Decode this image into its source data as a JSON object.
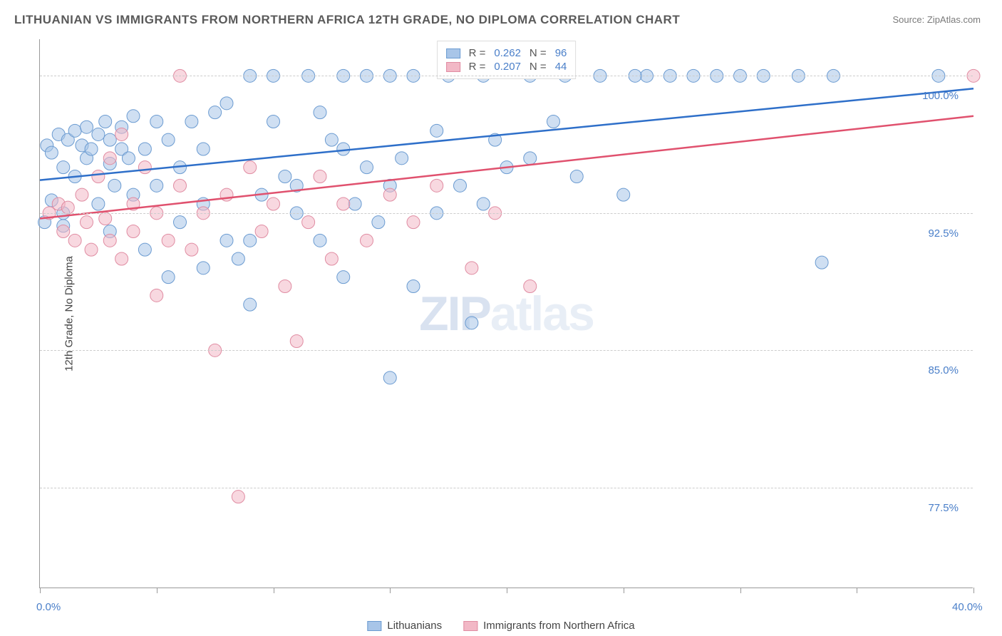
{
  "title": "LITHUANIAN VS IMMIGRANTS FROM NORTHERN AFRICA 12TH GRADE, NO DIPLOMA CORRELATION CHART",
  "source": "Source: ZipAtlas.com",
  "ylabel": "12th Grade, No Diploma",
  "watermark_a": "ZIP",
  "watermark_b": "atlas",
  "chart": {
    "type": "scatter",
    "xlim": [
      0,
      40
    ],
    "ylim": [
      72,
      102
    ],
    "x_ticks": [
      0,
      5,
      10,
      15,
      20,
      25,
      30,
      35,
      40
    ],
    "x_tick_labels": {
      "0": "0.0%",
      "40": "40.0%"
    },
    "y_ticks": [
      77.5,
      85.0,
      92.5,
      100.0
    ],
    "y_tick_labels": [
      "77.5%",
      "85.0%",
      "92.5%",
      "100.0%"
    ],
    "grid_color": "#cccccc",
    "background_color": "#ffffff",
    "series": [
      {
        "name": "Lithuanians",
        "color_fill": "#a8c5e8",
        "color_stroke": "#6b9bd1",
        "line_color": "#2e6fc9",
        "marker_r": 9,
        "fill_opacity": 0.55,
        "R_label": "R =",
        "R": "0.262",
        "N_label": "N =",
        "N": "96",
        "trend": {
          "x1": 0,
          "y1": 94.3,
          "x2": 40,
          "y2": 99.3
        },
        "points": [
          [
            0.3,
            96.2
          ],
          [
            0.5,
            95.8
          ],
          [
            0.5,
            93.2
          ],
          [
            0.8,
            96.8
          ],
          [
            1.0,
            95.0
          ],
          [
            1.0,
            91.8
          ],
          [
            1.2,
            96.5
          ],
          [
            1.5,
            97.0
          ],
          [
            1.5,
            94.5
          ],
          [
            1.8,
            96.2
          ],
          [
            2.0,
            97.2
          ],
          [
            2.0,
            95.5
          ],
          [
            2.2,
            96.0
          ],
          [
            2.5,
            96.8
          ],
          [
            2.5,
            93.0
          ],
          [
            2.8,
            97.5
          ],
          [
            3.0,
            95.2
          ],
          [
            3.0,
            96.5
          ],
          [
            3.2,
            94.0
          ],
          [
            3.5,
            96.0
          ],
          [
            3.5,
            97.2
          ],
          [
            3.8,
            95.5
          ],
          [
            4.0,
            97.8
          ],
          [
            4.0,
            93.5
          ],
          [
            4.5,
            96.0
          ],
          [
            4.5,
            90.5
          ],
          [
            5.0,
            97.5
          ],
          [
            5.0,
            94.0
          ],
          [
            5.5,
            96.5
          ],
          [
            6.0,
            95.0
          ],
          [
            6.0,
            92.0
          ],
          [
            6.5,
            97.5
          ],
          [
            7.0,
            89.5
          ],
          [
            7.0,
            96.0
          ],
          [
            7.5,
            98.0
          ],
          [
            8.0,
            98.5
          ],
          [
            8.0,
            91.0
          ],
          [
            8.5,
            90.0
          ],
          [
            9.0,
            100.0
          ],
          [
            9.0,
            87.5
          ],
          [
            9.5,
            93.5
          ],
          [
            10.0,
            100.0
          ],
          [
            10.0,
            97.5
          ],
          [
            10.5,
            94.5
          ],
          [
            11.0,
            92.5
          ],
          [
            11.5,
            100.0
          ],
          [
            12.0,
            91.0
          ],
          [
            12.0,
            98.0
          ],
          [
            12.5,
            96.5
          ],
          [
            13.0,
            100.0
          ],
          [
            13.0,
            89.0
          ],
          [
            13.5,
            93.0
          ],
          [
            14.0,
            100.0
          ],
          [
            14.0,
            95.0
          ],
          [
            14.5,
            92.0
          ],
          [
            15.0,
            100.0
          ],
          [
            15.0,
            83.5
          ],
          [
            15.5,
            95.5
          ],
          [
            16.0,
            100.0
          ],
          [
            16.0,
            88.5
          ],
          [
            17.0,
            97.0
          ],
          [
            17.5,
            100.0
          ],
          [
            18.0,
            94.0
          ],
          [
            18.5,
            86.5
          ],
          [
            19.0,
            100.0
          ],
          [
            19.5,
            96.5
          ],
          [
            20.0,
            95.0
          ],
          [
            21.0,
            100.0
          ],
          [
            22.0,
            97.5
          ],
          [
            22.5,
            100.0
          ],
          [
            23.0,
            94.5
          ],
          [
            24.0,
            100.0
          ],
          [
            25.0,
            93.5
          ],
          [
            26.0,
            100.0
          ],
          [
            27.0,
            100.0
          ],
          [
            28.0,
            100.0
          ],
          [
            29.0,
            100.0
          ],
          [
            30.0,
            100.0
          ],
          [
            31.0,
            100.0
          ],
          [
            32.5,
            100.0
          ],
          [
            33.5,
            89.8
          ],
          [
            34.0,
            100.0
          ],
          [
            38.5,
            100.0
          ],
          [
            0.2,
            92.0
          ],
          [
            1.0,
            92.5
          ],
          [
            3.0,
            91.5
          ],
          [
            5.5,
            89.0
          ],
          [
            7.0,
            93.0
          ],
          [
            9.0,
            91.0
          ],
          [
            11.0,
            94.0
          ],
          [
            13.0,
            96.0
          ],
          [
            15.0,
            94.0
          ],
          [
            17.0,
            92.5
          ],
          [
            19.0,
            93.0
          ],
          [
            21.0,
            95.5
          ],
          [
            25.5,
            100.0
          ]
        ]
      },
      {
        "name": "Immigrants from Northern Africa",
        "color_fill": "#f2b8c6",
        "color_stroke": "#e08ca2",
        "line_color": "#e0516e",
        "marker_r": 9,
        "fill_opacity": 0.55,
        "R_label": "R =",
        "R": "0.207",
        "N_label": "N =",
        "N": "44",
        "trend": {
          "x1": 0,
          "y1": 92.2,
          "x2": 40,
          "y2": 97.8
        },
        "points": [
          [
            0.4,
            92.5
          ],
          [
            0.8,
            93.0
          ],
          [
            1.0,
            91.5
          ],
          [
            1.2,
            92.8
          ],
          [
            1.5,
            91.0
          ],
          [
            1.8,
            93.5
          ],
          [
            2.0,
            92.0
          ],
          [
            2.2,
            90.5
          ],
          [
            2.5,
            94.5
          ],
          [
            2.8,
            92.2
          ],
          [
            3.0,
            91.0
          ],
          [
            3.0,
            95.5
          ],
          [
            3.5,
            96.8
          ],
          [
            3.5,
            90.0
          ],
          [
            4.0,
            93.0
          ],
          [
            4.0,
            91.5
          ],
          [
            4.5,
            95.0
          ],
          [
            5.0,
            92.5
          ],
          [
            5.0,
            88.0
          ],
          [
            5.5,
            91.0
          ],
          [
            6.0,
            100.0
          ],
          [
            6.0,
            94.0
          ],
          [
            6.5,
            90.5
          ],
          [
            7.0,
            92.5
          ],
          [
            7.5,
            85.0
          ],
          [
            8.0,
            93.5
          ],
          [
            8.5,
            77.0
          ],
          [
            9.0,
            95.0
          ],
          [
            9.5,
            91.5
          ],
          [
            10.0,
            93.0
          ],
          [
            10.5,
            88.5
          ],
          [
            11.0,
            85.5
          ],
          [
            11.5,
            92.0
          ],
          [
            12.0,
            94.5
          ],
          [
            12.5,
            90.0
          ],
          [
            13.0,
            93.0
          ],
          [
            14.0,
            91.0
          ],
          [
            15.0,
            93.5
          ],
          [
            16.0,
            92.0
          ],
          [
            17.0,
            94.0
          ],
          [
            18.5,
            89.5
          ],
          [
            19.5,
            92.5
          ],
          [
            21.0,
            88.5
          ],
          [
            40.0,
            100.0
          ]
        ]
      }
    ]
  },
  "legend_bottom": [
    {
      "label": "Lithuanians",
      "fill": "#a8c5e8",
      "stroke": "#6b9bd1"
    },
    {
      "label": "Immigrants from Northern Africa",
      "fill": "#f2b8c6",
      "stroke": "#e08ca2"
    }
  ]
}
